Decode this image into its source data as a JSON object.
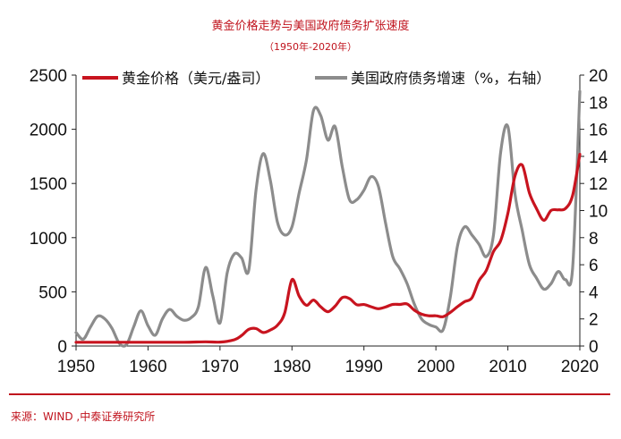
{
  "title": "黄金价格走势与美国政府债务扩张速度",
  "subtitle": "（1950年-2020年）",
  "source": "来源：WIND ,中泰证券研究所",
  "colors": {
    "gold": "#c8141f",
    "debt": "#8c8c8c",
    "accent": "#c0131d"
  },
  "chart_data": {
    "type": "line",
    "title": "黄金价格走势与美国政府债务扩张速度",
    "x_ticks": [
      1950,
      1960,
      1970,
      1980,
      1990,
      2000,
      2010,
      2020
    ],
    "xlim": [
      1950,
      2020
    ],
    "y_left": {
      "lim": [
        0,
        2500
      ],
      "ticks": [
        0,
        500,
        1000,
        1500,
        2000,
        2500
      ]
    },
    "y_right": {
      "lim": [
        0,
        20
      ],
      "ticks": [
        0,
        2,
        4,
        6,
        8,
        10,
        12,
        14,
        16,
        18,
        20
      ]
    },
    "legend_position": "top",
    "grid": false,
    "series": [
      {
        "name": "黄金价格（美元/盎司）",
        "axis": "left",
        "color": "#c8141f",
        "points": [
          [
            1950,
            35
          ],
          [
            1955,
            35
          ],
          [
            1960,
            35
          ],
          [
            1965,
            35
          ],
          [
            1968,
            39
          ],
          [
            1970,
            36
          ],
          [
            1972,
            58
          ],
          [
            1973,
            97
          ],
          [
            1974,
            154
          ],
          [
            1975,
            161
          ],
          [
            1976,
            125
          ],
          [
            1977,
            148
          ],
          [
            1978,
            193
          ],
          [
            1979,
            306
          ],
          [
            1980,
            612
          ],
          [
            1981,
            460
          ],
          [
            1982,
            376
          ],
          [
            1983,
            424
          ],
          [
            1984,
            361
          ],
          [
            1985,
            317
          ],
          [
            1986,
            368
          ],
          [
            1987,
            447
          ],
          [
            1988,
            437
          ],
          [
            1989,
            381
          ],
          [
            1990,
            383
          ],
          [
            1991,
            362
          ],
          [
            1992,
            344
          ],
          [
            1993,
            360
          ],
          [
            1994,
            384
          ],
          [
            1995,
            384
          ],
          [
            1996,
            388
          ],
          [
            1997,
            331
          ],
          [
            1998,
            294
          ],
          [
            1999,
            279
          ],
          [
            2000,
            279
          ],
          [
            2001,
            271
          ],
          [
            2002,
            310
          ],
          [
            2003,
            363
          ],
          [
            2004,
            409
          ],
          [
            2005,
            445
          ],
          [
            2006,
            604
          ],
          [
            2007,
            696
          ],
          [
            2008,
            872
          ],
          [
            2009,
            972
          ],
          [
            2010,
            1225
          ],
          [
            2011,
            1572
          ],
          [
            2012,
            1669
          ],
          [
            2013,
            1411
          ],
          [
            2014,
            1266
          ],
          [
            2015,
            1160
          ],
          [
            2016,
            1251
          ],
          [
            2017,
            1257
          ],
          [
            2018,
            1268
          ],
          [
            2019,
            1392
          ],
          [
            2020,
            1770
          ]
        ]
      },
      {
        "name": "美国政府债务增速（%，右轴）",
        "axis": "right",
        "color": "#8c8c8c",
        "points": [
          [
            1950,
            1.0
          ],
          [
            1951,
            0.5
          ],
          [
            1952,
            1.4
          ],
          [
            1953,
            2.2
          ],
          [
            1954,
            2.0
          ],
          [
            1955,
            1.3
          ],
          [
            1956,
            0.2
          ],
          [
            1957,
            0.1
          ],
          [
            1958,
            1.4
          ],
          [
            1959,
            2.6
          ],
          [
            1960,
            1.5
          ],
          [
            1961,
            0.8
          ],
          [
            1962,
            2.0
          ],
          [
            1963,
            2.7
          ],
          [
            1964,
            2.2
          ],
          [
            1965,
            1.9
          ],
          [
            1966,
            2.1
          ],
          [
            1967,
            2.9
          ],
          [
            1968,
            5.8
          ],
          [
            1969,
            3.7
          ],
          [
            1970,
            1.7
          ],
          [
            1971,
            5.4
          ],
          [
            1972,
            6.8
          ],
          [
            1973,
            6.5
          ],
          [
            1974,
            5.6
          ],
          [
            1975,
            11.5
          ],
          [
            1976,
            14.2
          ],
          [
            1977,
            12.2
          ],
          [
            1978,
            9.1
          ],
          [
            1979,
            8.2
          ],
          [
            1980,
            8.8
          ],
          [
            1981,
            11.3
          ],
          [
            1982,
            13.7
          ],
          [
            1983,
            17.4
          ],
          [
            1984,
            17.0
          ],
          [
            1985,
            15.2
          ],
          [
            1986,
            16.2
          ],
          [
            1987,
            13.2
          ],
          [
            1988,
            10.8
          ],
          [
            1989,
            10.8
          ],
          [
            1990,
            11.5
          ],
          [
            1991,
            12.5
          ],
          [
            1992,
            11.8
          ],
          [
            1993,
            9.1
          ],
          [
            1994,
            6.6
          ],
          [
            1995,
            5.7
          ],
          [
            1996,
            4.6
          ],
          [
            1997,
            3.1
          ],
          [
            1998,
            2.0
          ],
          [
            1999,
            1.6
          ],
          [
            2000,
            1.4
          ],
          [
            2001,
            1.2
          ],
          [
            2002,
            3.6
          ],
          [
            2003,
            7.4
          ],
          [
            2004,
            8.8
          ],
          [
            2005,
            8.2
          ],
          [
            2006,
            7.5
          ],
          [
            2007,
            6.6
          ],
          [
            2008,
            8.2
          ],
          [
            2009,
            14.3
          ],
          [
            2010,
            16.2
          ],
          [
            2011,
            11.2
          ],
          [
            2012,
            8.5
          ],
          [
            2013,
            6.0
          ],
          [
            2014,
            5.0
          ],
          [
            2015,
            4.2
          ],
          [
            2016,
            4.6
          ],
          [
            2017,
            5.5
          ],
          [
            2018,
            4.9
          ],
          [
            2019,
            5.8
          ],
          [
            2020,
            18.8
          ]
        ]
      }
    ]
  }
}
